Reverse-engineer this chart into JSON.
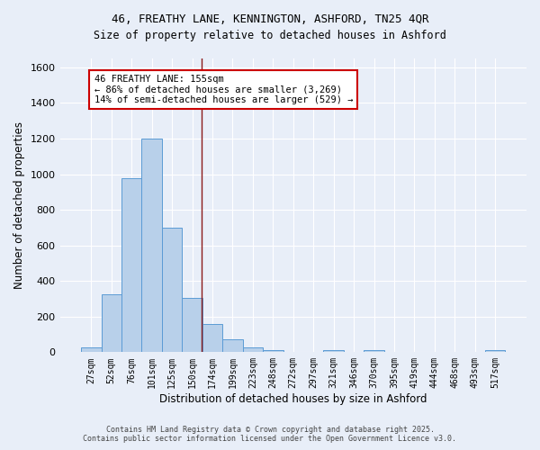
{
  "title_line1": "46, FREATHY LANE, KENNINGTON, ASHFORD, TN25 4QR",
  "title_line2": "Size of property relative to detached houses in Ashford",
  "xlabel": "Distribution of detached houses by size in Ashford",
  "ylabel": "Number of detached properties",
  "categories": [
    "27sqm",
    "52sqm",
    "76sqm",
    "101sqm",
    "125sqm",
    "150sqm",
    "174sqm",
    "199sqm",
    "223sqm",
    "248sqm",
    "272sqm",
    "297sqm",
    "321sqm",
    "346sqm",
    "370sqm",
    "395sqm",
    "419sqm",
    "444sqm",
    "468sqm",
    "493sqm",
    "517sqm"
  ],
  "values": [
    25,
    325,
    975,
    1200,
    700,
    305,
    158,
    72,
    28,
    14,
    0,
    0,
    10,
    0,
    12,
    0,
    0,
    0,
    0,
    0,
    10
  ],
  "bar_color": "#b8d0ea",
  "bar_edge_color": "#5b9bd5",
  "vline_x_index": 5.45,
  "vline_color": "#8b1a1a",
  "annotation_text": "46 FREATHY LANE: 155sqm\n← 86% of detached houses are smaller (3,269)\n14% of semi-detached houses are larger (529) →",
  "annotation_box_color": "white",
  "annotation_box_edge": "#cc0000",
  "background_color": "#e8eef8",
  "grid_color": "white",
  "ylim": [
    0,
    1650
  ],
  "yticks": [
    0,
    200,
    400,
    600,
    800,
    1000,
    1200,
    1400,
    1600
  ],
  "footer_line1": "Contains HM Land Registry data © Crown copyright and database right 2025.",
  "footer_line2": "Contains public sector information licensed under the Open Government Licence v3.0."
}
